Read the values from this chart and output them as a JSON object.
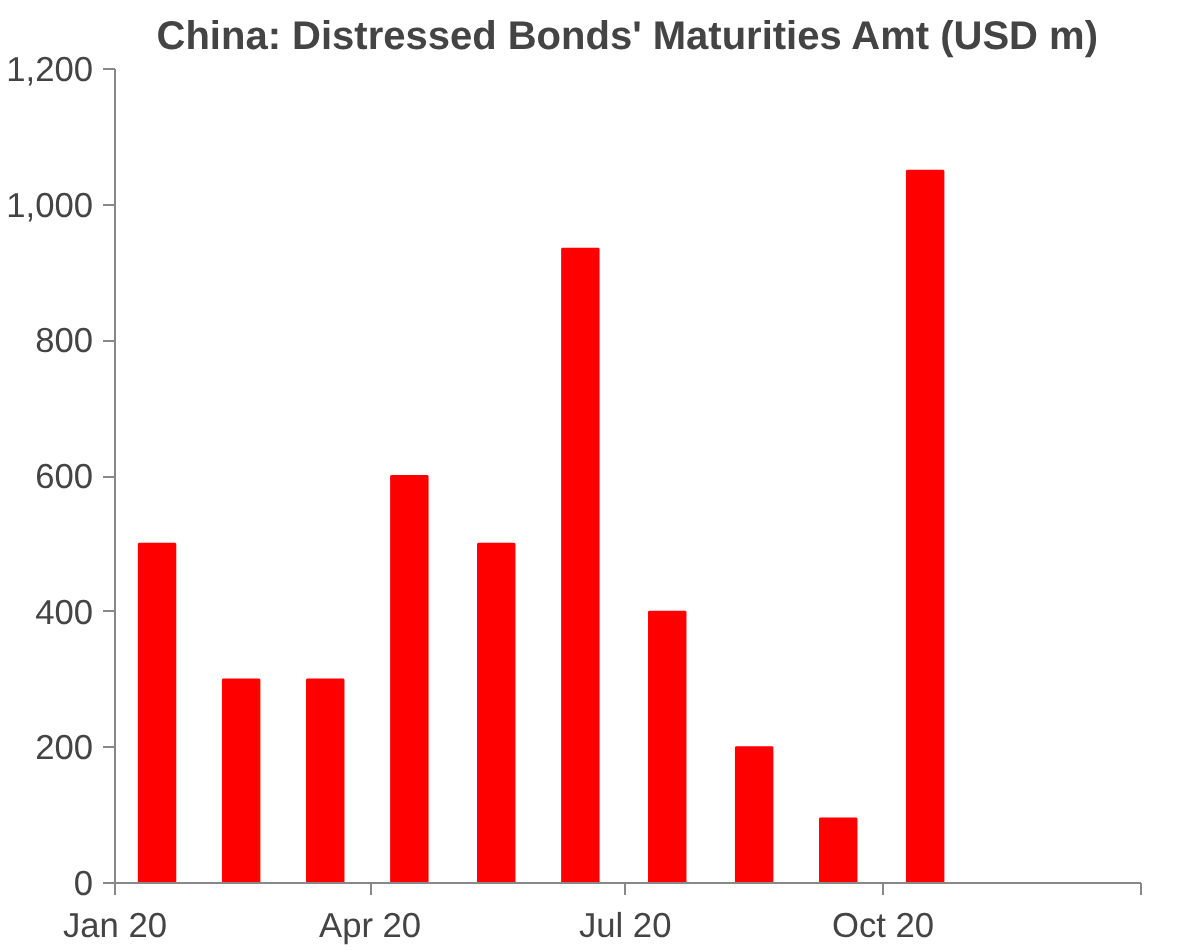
{
  "chart_data": {
    "type": "bar",
    "title": "China: Distressed Bonds' Maturities Amt (USD m)",
    "x": [
      "2020-01-16",
      "2020-02-15",
      "2020-03-16",
      "2020-04-15",
      "2020-05-16",
      "2020-06-15",
      "2020-07-16",
      "2020-08-16",
      "2020-09-15",
      "2020-10-16"
    ],
    "values": [
      500,
      300,
      300,
      600,
      500,
      935,
      400,
      200,
      95,
      1050
    ],
    "color": "#ff0000",
    "xlim": [
      "2020-01",
      "2021-01"
    ],
    "xticks": [
      {
        "value": "2020-01",
        "label": "Jan 20"
      },
      {
        "value": "2020-04",
        "label": "Apr 20"
      },
      {
        "value": "2020-07",
        "label": "Jul 20"
      },
      {
        "value": "2020-10",
        "label": "Oct 20"
      },
      {
        "value": "2021-01",
        "label": null
      }
    ],
    "ylim": [
      0,
      1200
    ],
    "yticks": [
      0,
      {
        "value": 200,
        "label": "200"
      },
      {
        "value": 400,
        "label": "400"
      },
      {
        "value": 600,
        "label": "600"
      },
      {
        "value": 800,
        "label": "800"
      },
      {
        "value": 1000,
        "label": "1,000"
      },
      {
        "value": 1200,
        "label": "1,200"
      }
    ],
    "grid": false
  }
}
